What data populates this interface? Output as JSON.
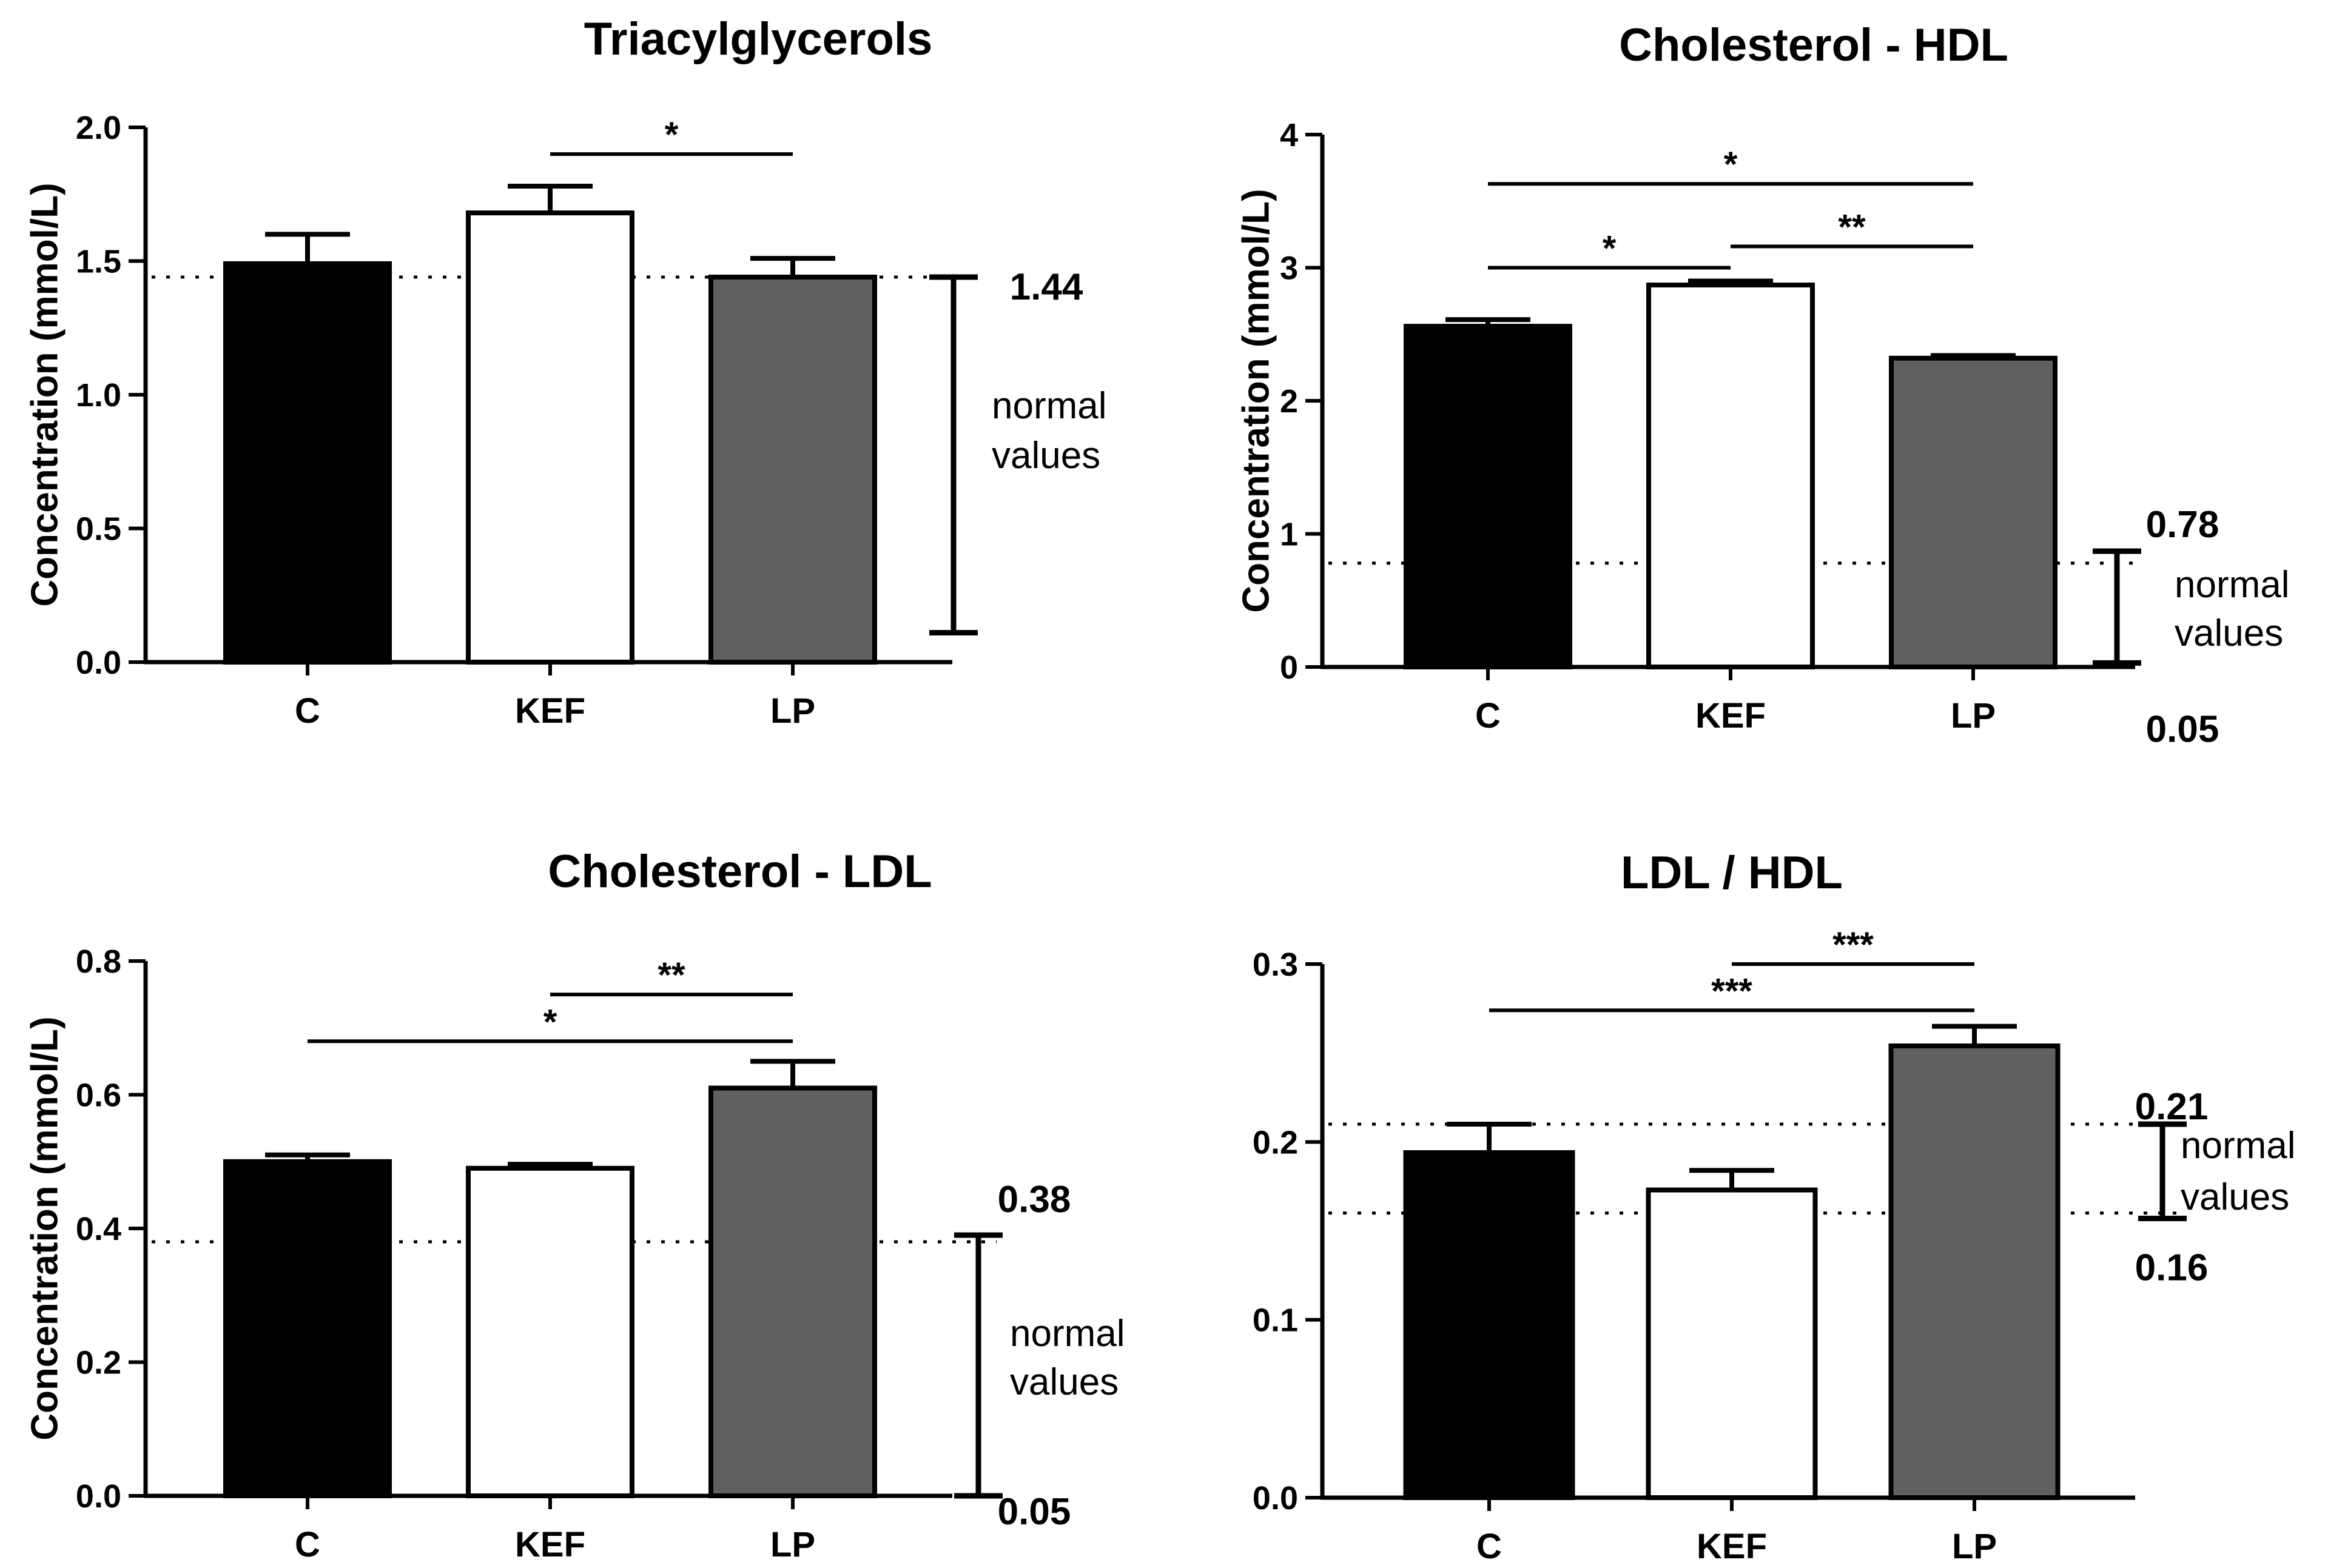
{
  "figure_title": "",
  "chart_data": [
    {
      "type": "bar",
      "title": "Triacylglycerols",
      "xlabel": "",
      "ylabel": "Concentration (mmol/L)",
      "ylim": [
        0,
        2.0
      ],
      "yticks": [
        0.0,
        0.5,
        1.0,
        1.5,
        2.0
      ],
      "ytick_labels": [
        "0.0",
        "0.5",
        "1.0",
        "1.5",
        "2.0"
      ],
      "categories": [
        "C",
        "KEF",
        "LP"
      ],
      "values": [
        1.49,
        1.68,
        1.44
      ],
      "errors": [
        0.11,
        0.1,
        0.07
      ],
      "bar_colors": [
        "#000000",
        "#ffffff",
        "#606060"
      ],
      "reference_lines": [
        1.44
      ],
      "significance": [
        {
          "from": 1,
          "to": 2,
          "y": 1.9,
          "label": "*"
        }
      ],
      "normal_range": {
        "top": 1.44,
        "bottom": 0.11,
        "top_label": "1.44",
        "bottom_label": "",
        "label_lines": [
          "normal",
          "values"
        ]
      }
    },
    {
      "type": "bar",
      "title": "Cholesterol - HDL",
      "xlabel": "",
      "ylabel": "Concentration (mmol/L)",
      "ylim": [
        0,
        4
      ],
      "yticks": [
        0,
        1,
        2,
        3,
        4
      ],
      "ytick_labels": [
        "0",
        "1",
        "2",
        "3",
        "4"
      ],
      "categories": [
        "C",
        "KEF",
        "LP"
      ],
      "values": [
        2.56,
        2.87,
        2.32
      ],
      "errors": [
        0.05,
        0.03,
        0.02
      ],
      "bar_colors": [
        "#000000",
        "#ffffff",
        "#606060"
      ],
      "reference_lines": [
        0.78
      ],
      "significance": [
        {
          "from": 0,
          "to": 2,
          "y": 3.63,
          "label": "*"
        },
        {
          "from": 0,
          "to": 1,
          "y": 3.0,
          "label": "*"
        },
        {
          "from": 1,
          "to": 2,
          "y": 3.16,
          "label": "**"
        }
      ],
      "normal_range": {
        "top": 0.87,
        "bottom": 0.03,
        "top_label": "0.78",
        "bottom_label": "0.05",
        "label_lines": [
          "normal",
          "values"
        ]
      }
    },
    {
      "type": "bar",
      "title": "Cholesterol - LDL",
      "xlabel": "",
      "ylabel": "Concentration (mmol/L)",
      "ylim": [
        0,
        0.8
      ],
      "yticks": [
        0.0,
        0.2,
        0.4,
        0.6,
        0.8
      ],
      "ytick_labels": [
        "0.0",
        "0.2",
        "0.4",
        "0.6",
        "0.8"
      ],
      "categories": [
        "C",
        "KEF",
        "LP"
      ],
      "values": [
        0.5,
        0.49,
        0.61
      ],
      "errors": [
        0.01,
        0.006,
        0.04
      ],
      "bar_colors": [
        "#000000",
        "#ffffff",
        "#606060"
      ],
      "reference_lines": [
        0.38
      ],
      "significance": [
        {
          "from": 0,
          "to": 2,
          "y": 0.68,
          "label": "*"
        },
        {
          "from": 1,
          "to": 2,
          "y": 0.75,
          "label": "**"
        }
      ],
      "normal_range": {
        "top": 0.39,
        "bottom": 0.0,
        "top_label": "0.38",
        "bottom_label": "0.05",
        "label_lines": [
          "normal",
          "values"
        ]
      }
    },
    {
      "type": "bar",
      "title": "LDL / HDL",
      "xlabel": "",
      "ylabel": "",
      "ylim": [
        0,
        0.3
      ],
      "yticks": [
        0.0,
        0.1,
        0.2,
        0.3
      ],
      "ytick_labels": [
        "0.0",
        "0.1",
        "0.2",
        "0.3"
      ],
      "categories": [
        "C",
        "KEF",
        "LP"
      ],
      "values": [
        0.194,
        0.173,
        0.254
      ],
      "errors": [
        0.016,
        0.011,
        0.011
      ],
      "bar_colors": [
        "#000000",
        "#ffffff",
        "#606060"
      ],
      "reference_lines": [
        0.21,
        0.16
      ],
      "significance": [
        {
          "from": 0,
          "to": 2,
          "y": 0.274,
          "label": "***"
        },
        {
          "from": 1,
          "to": 2,
          "y": 0.3,
          "label": "***"
        }
      ],
      "normal_range": {
        "top": 0.21,
        "bottom": 0.157,
        "top_label": "0.21",
        "bottom_label": "0.16",
        "label_lines": [
          "normal",
          "values"
        ]
      }
    }
  ]
}
